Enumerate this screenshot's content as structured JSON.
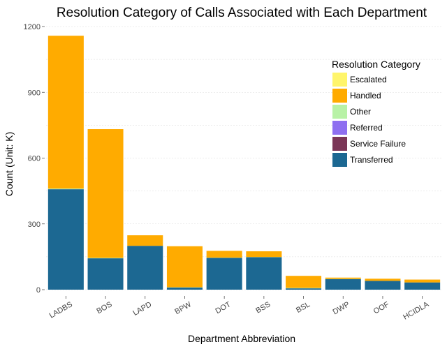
{
  "chart_data": {
    "type": "bar",
    "stacked": true,
    "title": "Resolution Category of Calls Associated with Each Department",
    "xlabel": "Department Abbreviation",
    "ylabel": "Count (Unit: K)",
    "ylim": [
      0,
      1230
    ],
    "yticks": [
      0,
      300,
      600,
      900,
      1200
    ],
    "grid": true,
    "legend_position": "right",
    "legend_title": "Resolution Category",
    "categories": [
      "LADBS",
      "BOS",
      "LAPD",
      "BPW",
      "DOT",
      "BSS",
      "BSL",
      "DWP",
      "OOF",
      "HCIDLA"
    ],
    "series": [
      {
        "name": "Transferred",
        "color": "#1c6892",
        "values": [
          458,
          143,
          200,
          10,
          145,
          148,
          6,
          48,
          40,
          33
        ]
      },
      {
        "name": "Service Failure",
        "color": "#7b3657",
        "values": [
          0,
          0,
          0,
          0,
          0,
          0,
          0,
          0,
          0,
          0
        ]
      },
      {
        "name": "Referred",
        "color": "#8e6ff0",
        "values": [
          0,
          0,
          0,
          0,
          0,
          0,
          0,
          0,
          0,
          0
        ]
      },
      {
        "name": "Other",
        "color": "#b8f2a6",
        "values": [
          3,
          2,
          0,
          1,
          1,
          1,
          2,
          1,
          0,
          0
        ]
      },
      {
        "name": "Handled",
        "color": "#ffab00",
        "values": [
          697,
          587,
          48,
          187,
          31,
          26,
          55,
          6,
          10,
          13
        ]
      },
      {
        "name": "Escalated",
        "color": "#fff56b",
        "values": [
          0,
          0,
          0,
          0,
          0,
          0,
          0,
          0,
          0,
          0
        ]
      }
    ],
    "legend_order": [
      "Escalated",
      "Handled",
      "Other",
      "Referred",
      "Service Failure",
      "Transferred"
    ]
  }
}
